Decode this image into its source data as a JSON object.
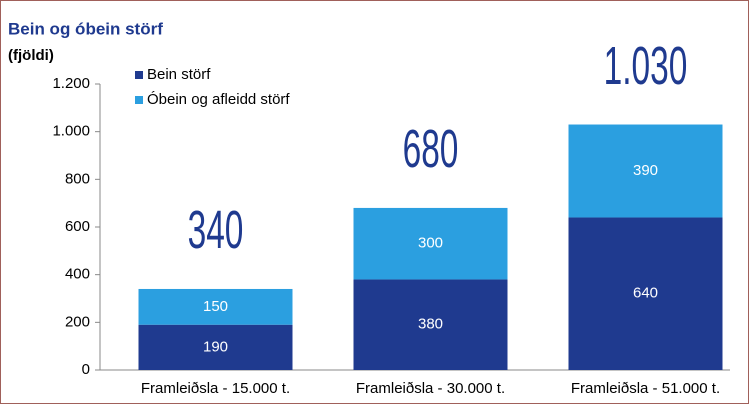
{
  "chart_data": {
    "type": "stacked_bar",
    "title": "Bein og óbein störf",
    "ylabel": "(fjöldi)",
    "categories": [
      "Framleiðsla - 15.000 t.",
      "Framleiðsla - 30.000 t.",
      "Framleiðsla - 51.000 t."
    ],
    "series": [
      {
        "name": "Bein störf",
        "color": "#1f3a8f",
        "values": [
          190,
          380,
          640
        ]
      },
      {
        "name": "Óbein og afleidd störf",
        "color": "#2b9fe0",
        "values": [
          150,
          300,
          390
        ]
      }
    ],
    "totals": {
      "values": [
        340,
        680,
        1030
      ],
      "value_labels": [
        "340",
        "680",
        "1.030"
      ]
    },
    "ylim": [
      0,
      1200
    ],
    "yticks": [
      0,
      200,
      400,
      600,
      800,
      {
        "value": 1000,
        "label": "1.000"
      },
      {
        "value": 1200,
        "label": "1.200"
      }
    ],
    "grid": false,
    "legend": "top-left"
  }
}
